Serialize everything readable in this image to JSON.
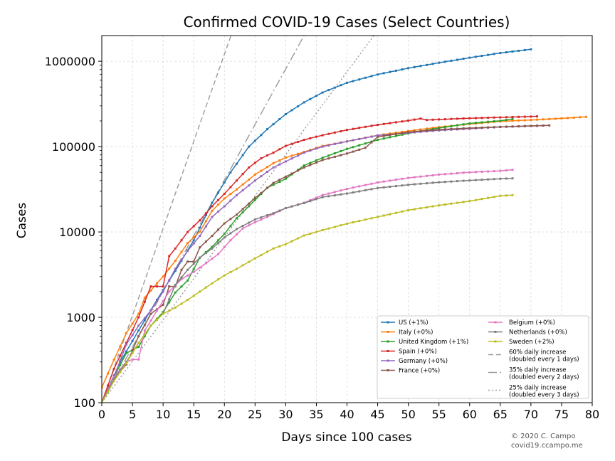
{
  "chart_data": {
    "type": "line",
    "title": "Confirmed COVID-19 Cases (Select Countries)",
    "xlabel": "Days since 100 cases",
    "ylabel": "Cases",
    "xlim": [
      0,
      80
    ],
    "ylim": [
      100,
      2000000
    ],
    "yscale": "log",
    "grid": true,
    "legend_position": "lower-right",
    "x_ticks": [
      0,
      5,
      10,
      15,
      20,
      25,
      30,
      35,
      40,
      45,
      50,
      55,
      60,
      65,
      70,
      75,
      80
    ],
    "x_tick_labels": [
      "0",
      "5",
      "10",
      "15",
      "20",
      "25",
      "30",
      "35",
      "40",
      "45",
      "50",
      "55",
      "60",
      "65",
      "70",
      "75",
      "80"
    ],
    "y_ticks": [
      100,
      1000,
      10000,
      100000,
      1000000
    ],
    "y_tick_labels": [
      "100",
      "1000",
      "10000",
      "100000",
      "1000000"
    ],
    "series": [
      {
        "name": "US (+1%)",
        "color": "#1f77b4",
        "anchors": [
          [
            0,
            100
          ],
          [
            3,
            300
          ],
          [
            6,
            700
          ],
          [
            9,
            1600
          ],
          [
            12,
            3500
          ],
          [
            15,
            8000
          ],
          [
            18,
            22000
          ],
          [
            21,
            50000
          ],
          [
            24,
            100000
          ],
          [
            27,
            160000
          ],
          [
            30,
            240000
          ],
          [
            33,
            330000
          ],
          [
            36,
            430000
          ],
          [
            40,
            560000
          ],
          [
            45,
            700000
          ],
          [
            50,
            830000
          ],
          [
            55,
            960000
          ],
          [
            60,
            1100000
          ],
          [
            65,
            1250000
          ],
          [
            70,
            1380000
          ]
        ]
      },
      {
        "name": "Italy (+0%)",
        "color": "#ff7f0e",
        "anchors": [
          [
            0,
            150
          ],
          [
            2,
            320
          ],
          [
            4,
            650
          ],
          [
            6,
            1100
          ],
          [
            7,
            1700
          ],
          [
            9,
            2500
          ],
          [
            10,
            3000
          ],
          [
            12,
            4600
          ],
          [
            14,
            7400
          ],
          [
            16,
            10100
          ],
          [
            18,
            17700
          ],
          [
            20,
            24700
          ],
          [
            22,
            31500
          ],
          [
            25,
            47000
          ],
          [
            28,
            63900
          ],
          [
            30,
            74400
          ],
          [
            33,
            86500
          ],
          [
            36,
            101700
          ],
          [
            40,
            115200
          ],
          [
            45,
            135600
          ],
          [
            50,
            152300
          ],
          [
            55,
            169000
          ],
          [
            60,
            183900
          ],
          [
            65,
            197600
          ],
          [
            70,
            205400
          ],
          [
            75,
            214000
          ],
          [
            79,
            223000
          ]
        ]
      },
      {
        "name": "United Kingdom (+1%)",
        "color": "#2ca02c",
        "anchors": [
          [
            0,
            100
          ],
          [
            2,
            200
          ],
          [
            4,
            380
          ],
          [
            6,
            450
          ],
          [
            8,
            800
          ],
          [
            10,
            1150
          ],
          [
            12,
            1950
          ],
          [
            14,
            2700
          ],
          [
            16,
            5000
          ],
          [
            18,
            6700
          ],
          [
            20,
            9500
          ],
          [
            22,
            14500
          ],
          [
            24,
            20000
          ],
          [
            27,
            33000
          ],
          [
            30,
            42000
          ],
          [
            33,
            60000
          ],
          [
            36,
            74000
          ],
          [
            40,
            94000
          ],
          [
            45,
            120000
          ],
          [
            50,
            143000
          ],
          [
            55,
            165000
          ],
          [
            60,
            187000
          ],
          [
            65,
            201000
          ],
          [
            67,
            210000
          ]
        ]
      },
      {
        "name": "Spain (+0%)",
        "color": "#d62728",
        "anchors": [
          [
            0,
            100
          ],
          [
            2,
            250
          ],
          [
            4,
            500
          ],
          [
            6,
            1000
          ],
          [
            8,
            2300
          ],
          [
            10,
            2300
          ],
          [
            11,
            5200
          ],
          [
            12,
            6400
          ],
          [
            14,
            10000
          ],
          [
            16,
            13700
          ],
          [
            18,
            20000
          ],
          [
            20,
            28000
          ],
          [
            22,
            40000
          ],
          [
            24,
            57000
          ],
          [
            26,
            73000
          ],
          [
            28,
            85000
          ],
          [
            30,
            102000
          ],
          [
            33,
            120000
          ],
          [
            36,
            136000
          ],
          [
            40,
            157000
          ],
          [
            45,
            180000
          ],
          [
            50,
            202000
          ],
          [
            52,
            213000
          ],
          [
            53,
            205000
          ],
          [
            55,
            208000
          ],
          [
            60,
            215000
          ],
          [
            65,
            220000
          ],
          [
            71,
            226000
          ]
        ]
      },
      {
        "name": "Germany (+0%)",
        "color": "#9467bd",
        "anchors": [
          [
            0,
            100
          ],
          [
            2,
            200
          ],
          [
            4,
            480
          ],
          [
            6,
            800
          ],
          [
            8,
            1200
          ],
          [
            10,
            2000
          ],
          [
            12,
            3700
          ],
          [
            14,
            6000
          ],
          [
            16,
            9000
          ],
          [
            18,
            15000
          ],
          [
            20,
            20000
          ],
          [
            22,
            27000
          ],
          [
            25,
            40000
          ],
          [
            28,
            57000
          ],
          [
            30,
            67000
          ],
          [
            33,
            85000
          ],
          [
            36,
            100000
          ],
          [
            40,
            115000
          ],
          [
            45,
            135000
          ],
          [
            50,
            145000
          ],
          [
            55,
            155000
          ],
          [
            60,
            162000
          ],
          [
            65,
            170000
          ],
          [
            72,
            176000
          ]
        ]
      },
      {
        "name": "France (+0%)",
        "color": "#8c564b",
        "anchors": [
          [
            0,
            100
          ],
          [
            2,
            190
          ],
          [
            4,
            280
          ],
          [
            6,
            600
          ],
          [
            8,
            1100
          ],
          [
            10,
            1400
          ],
          [
            11,
            2300
          ],
          [
            12,
            2300
          ],
          [
            13,
            3600
          ],
          [
            14,
            4500
          ],
          [
            15,
            4500
          ],
          [
            16,
            6600
          ],
          [
            18,
            9000
          ],
          [
            20,
            12600
          ],
          [
            22,
            16000
          ],
          [
            25,
            25000
          ],
          [
            28,
            37500
          ],
          [
            30,
            44500
          ],
          [
            33,
            57000
          ],
          [
            36,
            69500
          ],
          [
            40,
            83000
          ],
          [
            43,
            97000
          ],
          [
            45,
            130000
          ],
          [
            50,
            148000
          ],
          [
            55,
            158000
          ],
          [
            60,
            165000
          ],
          [
            65,
            170000
          ],
          [
            70,
            175000
          ],
          [
            73,
            177000
          ]
        ]
      },
      {
        "name": "Belgium (+0%)",
        "color": "#e377c2",
        "anchors": [
          [
            0,
            100
          ],
          [
            2,
            200
          ],
          [
            4,
            300
          ],
          [
            5,
            320
          ],
          [
            6,
            320
          ],
          [
            7,
            700
          ],
          [
            9,
            1200
          ],
          [
            11,
            2000
          ],
          [
            13,
            2800
          ],
          [
            15,
            3400
          ],
          [
            17,
            4300
          ],
          [
            19,
            5500
          ],
          [
            21,
            8000
          ],
          [
            23,
            11000
          ],
          [
            25,
            13000
          ],
          [
            27,
            15000
          ],
          [
            30,
            19000
          ],
          [
            33,
            22000
          ],
          [
            36,
            27000
          ],
          [
            40,
            32000
          ],
          [
            45,
            38000
          ],
          [
            50,
            43000
          ],
          [
            55,
            47000
          ],
          [
            60,
            50000
          ],
          [
            65,
            52000
          ],
          [
            67,
            53500
          ]
        ]
      },
      {
        "name": "Netherlands (+0%)",
        "color": "#7f7f7f",
        "anchors": [
          [
            0,
            100
          ],
          [
            2,
            190
          ],
          [
            4,
            300
          ],
          [
            6,
            500
          ],
          [
            8,
            800
          ],
          [
            10,
            1100
          ],
          [
            12,
            2400
          ],
          [
            14,
            3600
          ],
          [
            16,
            5000
          ],
          [
            18,
            6400
          ],
          [
            20,
            8600
          ],
          [
            22,
            10800
          ],
          [
            25,
            14000
          ],
          [
            28,
            16600
          ],
          [
            30,
            19000
          ],
          [
            33,
            21800
          ],
          [
            36,
            25600
          ],
          [
            40,
            28200
          ],
          [
            45,
            32700
          ],
          [
            50,
            35700
          ],
          [
            55,
            38200
          ],
          [
            60,
            40200
          ],
          [
            65,
            42000
          ],
          [
            67,
            42500
          ]
        ]
      },
      {
        "name": "Sweden (+2%)",
        "color": "#bcbd22",
        "anchors": [
          [
            0,
            100
          ],
          [
            2,
            180
          ],
          [
            4,
            290
          ],
          [
            6,
            500
          ],
          [
            8,
            800
          ],
          [
            10,
            1100
          ],
          [
            12,
            1300
          ],
          [
            14,
            1600
          ],
          [
            16,
            2000
          ],
          [
            18,
            2500
          ],
          [
            20,
            3100
          ],
          [
            22,
            3700
          ],
          [
            25,
            4900
          ],
          [
            28,
            6400
          ],
          [
            30,
            7200
          ],
          [
            33,
            9100
          ],
          [
            36,
            10500
          ],
          [
            40,
            12500
          ],
          [
            45,
            15000
          ],
          [
            50,
            18000
          ],
          [
            55,
            20500
          ],
          [
            60,
            23000
          ],
          [
            65,
            26500
          ],
          [
            67,
            27000
          ]
        ]
      }
    ],
    "reference_lines": [
      {
        "name": "60% daily increase",
        "label_line2": "(doubled every 1 days)",
        "daily_growth": 0.6,
        "color": "#999999",
        "dash": "dashed"
      },
      {
        "name": "35% daily increase",
        "label_line2": "(doubled every 2 days)",
        "daily_growth": 0.35,
        "color": "#999999",
        "dash": "dashdot"
      },
      {
        "name": "25% daily increase",
        "label_line2": "(doubled every 3 days)",
        "daily_growth": 0.25,
        "color": "#999999",
        "dash": "dotted"
      }
    ],
    "credit": [
      "© 2020 C. Campo",
      "covid19.ccampo.me"
    ]
  }
}
